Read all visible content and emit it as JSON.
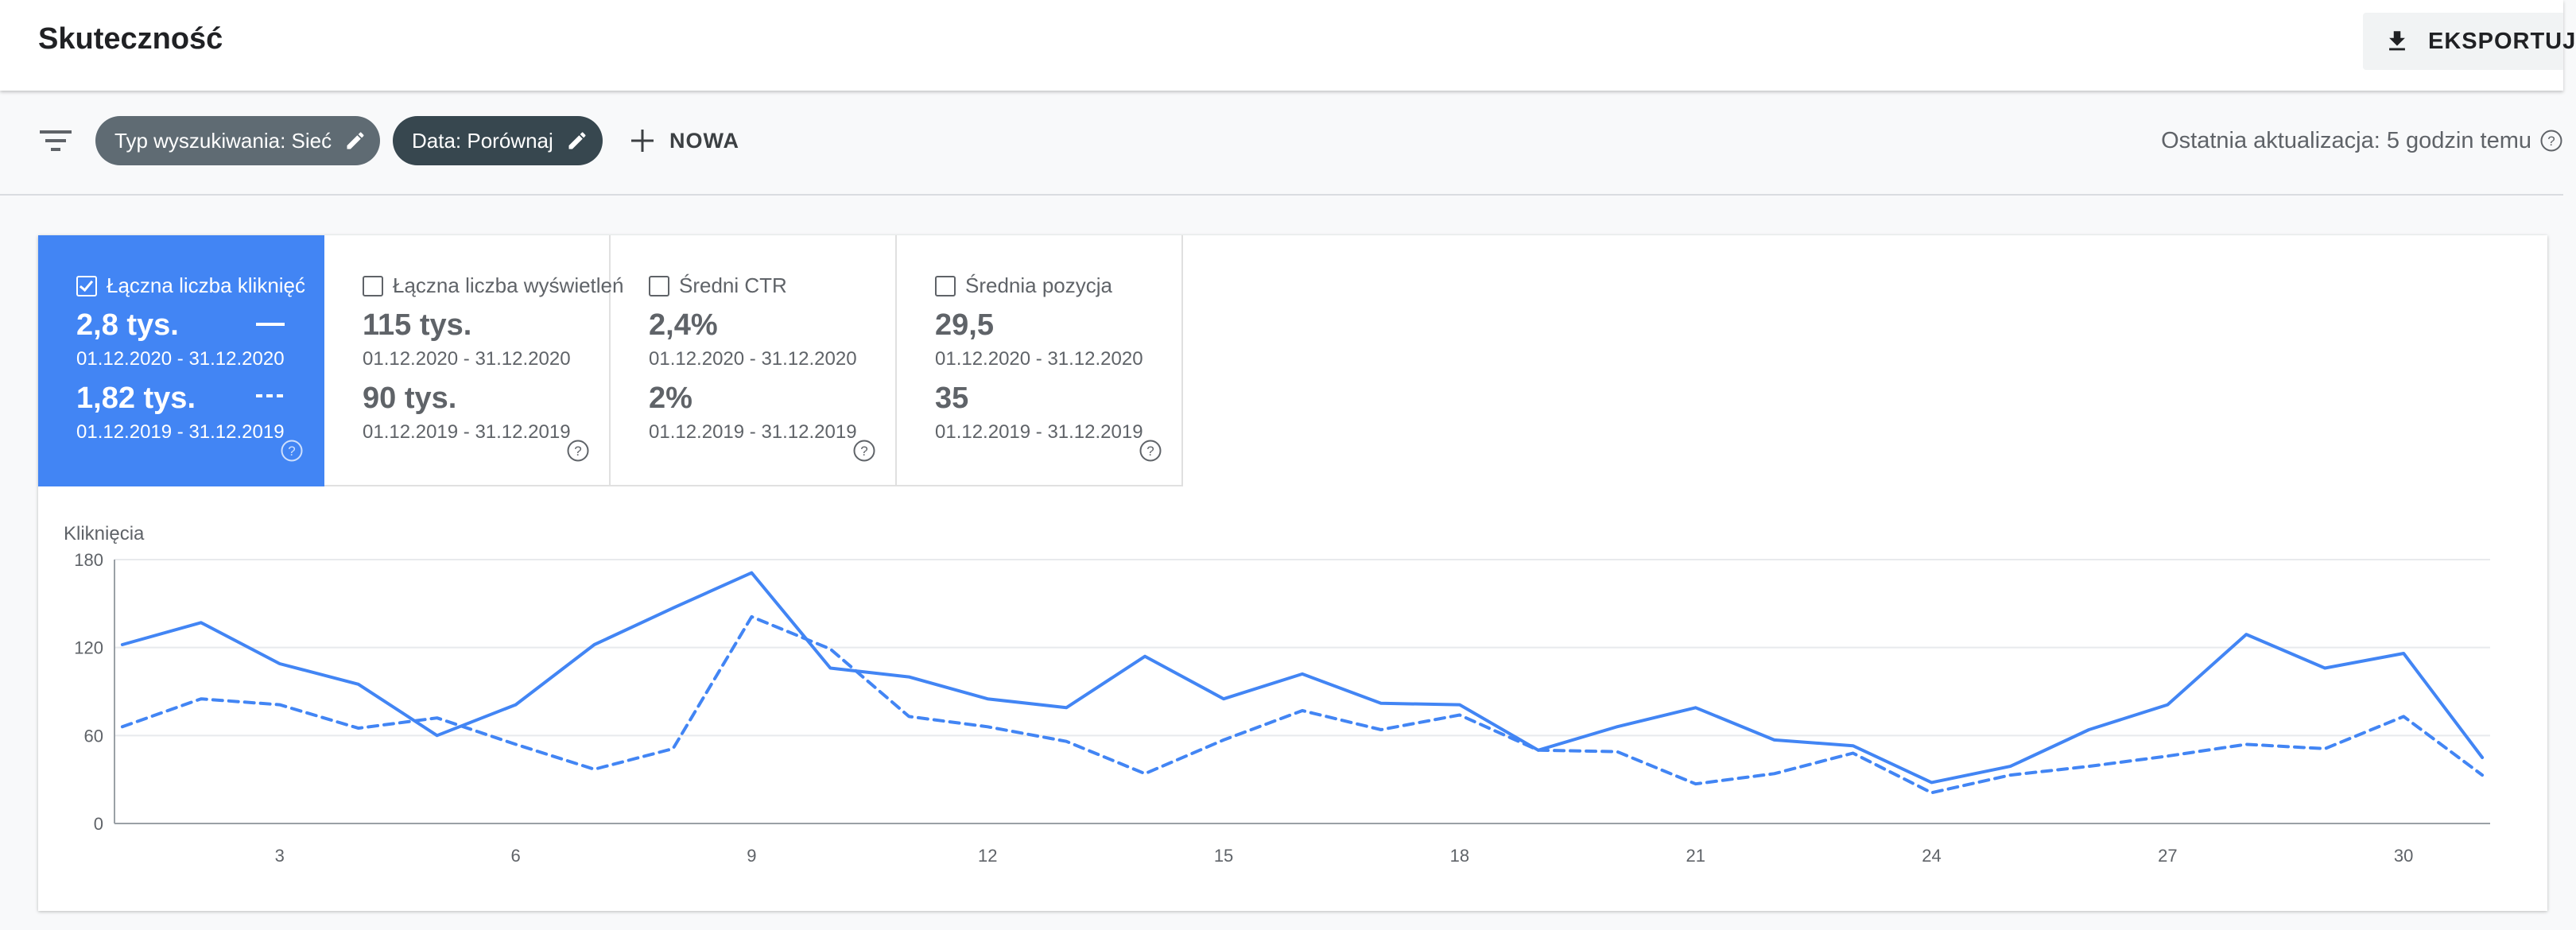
{
  "header": {
    "title": "Skuteczność",
    "export_label": "EKSPORTUJ",
    "export_icon": "download-icon"
  },
  "filters": {
    "filter_icon": "filter-icon",
    "chips": [
      {
        "label": "Typ wyszukiwania: Sieć",
        "icon": "edit-icon"
      },
      {
        "label": "Data: Porównaj",
        "icon": "edit-icon"
      }
    ],
    "new_label": "NOWA",
    "last_update": "Ostatnia aktualizacja: 5 godzin temu"
  },
  "metrics": [
    {
      "label": "Łączna liczba kliknięć",
      "active": true,
      "value1": "2,8 tys.",
      "range1": "01.12.2020 - 31.12.2020",
      "value2": "1,82 tys.",
      "range2": "01.12.2019 - 31.12.2019"
    },
    {
      "label": "Łączna liczba wyświetleń",
      "active": false,
      "value1": "115 tys.",
      "range1": "01.12.2020 - 31.12.2020",
      "value2": "90 tys.",
      "range2": "01.12.2019 - 31.12.2019"
    },
    {
      "label": "Średni CTR",
      "active": false,
      "value1": "2,4%",
      "range1": "01.12.2020 - 31.12.2020",
      "value2": "2%",
      "range2": "01.12.2019 - 31.12.2019"
    },
    {
      "label": "Średnia pozycja",
      "active": false,
      "value1": "29,5",
      "range1": "01.12.2020 - 31.12.2020",
      "value2": "35",
      "range2": "01.12.2019 - 31.12.2019"
    }
  ],
  "colors": {
    "accent": "#4285f4",
    "chip_type": "#5f6b73",
    "chip_date": "#37474f"
  },
  "chart_data": {
    "type": "line",
    "ylabel": "Kliknięcia",
    "ylim": [
      0,
      180
    ],
    "yticks": [
      0,
      60,
      120,
      180
    ],
    "xticks": [
      3,
      6,
      9,
      12,
      15,
      18,
      21,
      24,
      27,
      30
    ],
    "xlim": [
      1,
      31
    ],
    "grid": true,
    "x": [
      1,
      2,
      3,
      4,
      5,
      6,
      7,
      8,
      9,
      10,
      11,
      12,
      13,
      14,
      15,
      16,
      17,
      18,
      19,
      20,
      21,
      22,
      23,
      24,
      25,
      26,
      27,
      28,
      29,
      30,
      31
    ],
    "series": [
      {
        "name": "01.12.2020 - 31.12.2020",
        "style": "solid",
        "color": "#4285f4",
        "values": [
          122,
          137,
          109,
          95,
          60,
          81,
          122,
          147,
          171,
          106,
          100,
          85,
          79,
          114,
          85,
          102,
          82,
          81,
          50,
          66,
          79,
          57,
          53,
          28,
          39,
          64,
          81,
          129,
          106,
          116,
          45
        ]
      },
      {
        "name": "01.12.2019 - 31.12.2019",
        "style": "dashed",
        "color": "#4285f4",
        "values": [
          66,
          85,
          81,
          65,
          72,
          54,
          37,
          51,
          141,
          119,
          73,
          66,
          56,
          34,
          57,
          77,
          64,
          74,
          50,
          49,
          27,
          34,
          48,
          21,
          33,
          39,
          46,
          54,
          51,
          73,
          33
        ]
      }
    ]
  }
}
